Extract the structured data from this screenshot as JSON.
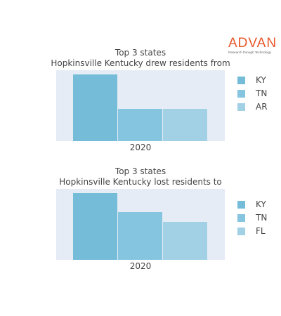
{
  "brand": {
    "name": "ADVAN",
    "tagline": "Research through Technology",
    "color": "#e8572a"
  },
  "chart_data": [
    {
      "type": "bar",
      "title": "Top 3 states",
      "subtitle": "Hopkinsville Kentucky drew residents from",
      "categories": [
        "2020"
      ],
      "series": [
        {
          "name": "KY",
          "values": [
            100
          ],
          "color": "#74bcd8"
        },
        {
          "name": "TN",
          "values": [
            48
          ],
          "color": "#86c5df"
        },
        {
          "name": "AR",
          "values": [
            48
          ],
          "color": "#a2d1e6"
        }
      ],
      "ylim": [
        0,
        100
      ],
      "legend": "right",
      "grid": false
    },
    {
      "type": "bar",
      "title": "Top 3 states",
      "subtitle": "Hopkinsville Kentucky lost residents to",
      "categories": [
        "2020"
      ],
      "series": [
        {
          "name": "KY",
          "values": [
            100
          ],
          "color": "#74bcd8"
        },
        {
          "name": "TN",
          "values": [
            72
          ],
          "color": "#86c5df"
        },
        {
          "name": "FL",
          "values": [
            57
          ],
          "color": "#a2d1e6"
        }
      ],
      "ylim": [
        0,
        100
      ],
      "legend": "right",
      "grid": false
    }
  ]
}
